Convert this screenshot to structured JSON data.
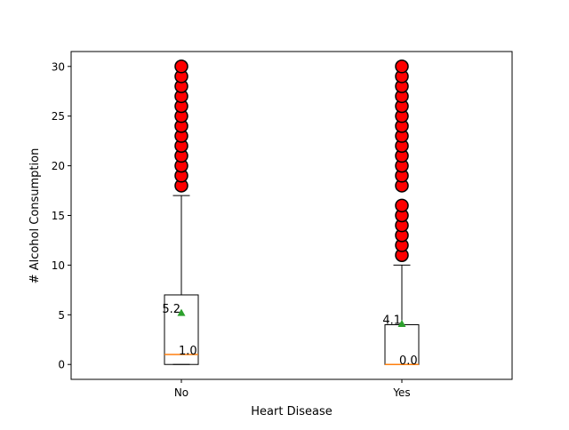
{
  "chart_data": {
    "type": "box",
    "xlabel": "Heart Disease",
    "ylabel": "# Alcohol Consumption",
    "ylim": [
      -1.5,
      31.5
    ],
    "yticks": [
      0,
      5,
      10,
      15,
      20,
      25,
      30
    ],
    "categories": [
      "No",
      "Yes"
    ],
    "boxes": [
      {
        "category": "No",
        "q1": 0,
        "median": 1.0,
        "q3": 7,
        "whisker_low": 0,
        "whisker_high": 17,
        "mean": 5.2,
        "median_label": "1.0",
        "mean_label": "5.2",
        "outliers": [
          18,
          19,
          20,
          21,
          22,
          23,
          24,
          25,
          26,
          27,
          28,
          29,
          30
        ]
      },
      {
        "category": "Yes",
        "q1": 0,
        "median": 0.0,
        "q3": 4,
        "whisker_low": 0,
        "whisker_high": 10,
        "mean": 4.1,
        "median_label": "0.0",
        "mean_label": "4.1",
        "outliers": [
          11,
          12,
          13,
          14,
          15,
          16,
          18,
          19,
          20,
          21,
          22,
          23,
          24,
          25,
          26,
          27,
          28,
          29,
          30
        ]
      }
    ],
    "colors": {
      "box_edge": "#000000",
      "median_line": "#ff7f0e",
      "mean_marker": "#2ca02c",
      "outlier_fill": "#ff0000",
      "outlier_edge": "#000000"
    }
  }
}
